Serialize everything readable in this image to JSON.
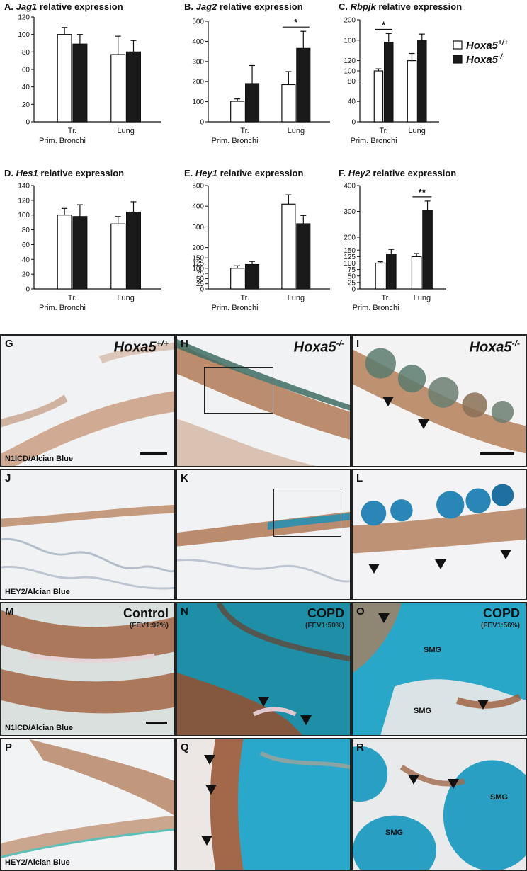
{
  "legend": {
    "wt_label": "Hoxa5",
    "wt_sup": "+/+",
    "ko_label": "Hoxa5",
    "ko_sup": "-/-"
  },
  "chart_data": [
    {
      "type": "bar",
      "letter": "A.",
      "gene": "Jag1",
      "suffix": " relative expression",
      "categories": [
        "Tr.\nPrim. Bronchi",
        "Lung"
      ],
      "series": [
        {
          "name": "Hoxa5+/+",
          "values": [
            100,
            77
          ],
          "errors": [
            8,
            21
          ]
        },
        {
          "name": "Hoxa5-/-",
          "values": [
            89,
            80
          ],
          "errors": [
            11,
            13
          ]
        }
      ],
      "ylim": [
        0,
        120
      ],
      "yticks": [
        0,
        20,
        40,
        60,
        80,
        100,
        120
      ],
      "significance": []
    },
    {
      "type": "bar",
      "letter": "B.",
      "gene": "Jag2",
      "suffix": " relative expression",
      "categories": [
        "Tr.\nPrim. Bronchi",
        "Lung"
      ],
      "series": [
        {
          "name": "Hoxa5+/+",
          "values": [
            102,
            185
          ],
          "errors": [
            12,
            65
          ]
        },
        {
          "name": "Hoxa5-/-",
          "values": [
            190,
            365
          ],
          "errors": [
            90,
            85
          ]
        }
      ],
      "ylim": [
        0,
        500
      ],
      "yticks": [
        0,
        100,
        200,
        300,
        400,
        500
      ],
      "significance": [
        {
          "group": 1,
          "label": "*"
        }
      ]
    },
    {
      "type": "bar",
      "letter": "C.",
      "gene": "Rbpjk",
      "suffix": " relative expression",
      "categories": [
        "Tr.\nPrim. Bronchi",
        "Lung"
      ],
      "series": [
        {
          "name": "Hoxa5+/+",
          "values": [
            100,
            120
          ],
          "errors": [
            4,
            14
          ]
        },
        {
          "name": "Hoxa5-/-",
          "values": [
            156,
            160
          ],
          "errors": [
            17,
            12
          ]
        }
      ],
      "ylim": [
        0,
        200
      ],
      "yticks": [
        0,
        40,
        80,
        100,
        120,
        160,
        200
      ],
      "significance": [
        {
          "group": 0,
          "label": "*"
        }
      ]
    },
    {
      "type": "bar",
      "letter": "D.",
      "gene": "Hes1",
      "suffix": " relative expression",
      "categories": [
        "Tr.\nPrim. Bronchi",
        "Lung"
      ],
      "series": [
        {
          "name": "Hoxa5+/+",
          "values": [
            100,
            88
          ],
          "errors": [
            9,
            10
          ]
        },
        {
          "name": "Hoxa5-/-",
          "values": [
            98,
            104
          ],
          "errors": [
            16,
            14
          ]
        }
      ],
      "ylim": [
        0,
        140
      ],
      "yticks": [
        0,
        20,
        40,
        60,
        80,
        100,
        120,
        140
      ],
      "significance": []
    },
    {
      "type": "bar",
      "letter": "E.",
      "gene": "Hey1",
      "suffix": " relative expression",
      "categories": [
        "Tr.\nPrim. Bronchi",
        "Lung"
      ],
      "series": [
        {
          "name": "Hoxa5+/+",
          "values": [
            100,
            410
          ],
          "errors": [
            12,
            45
          ]
        },
        {
          "name": "Hoxa5-/-",
          "values": [
            118,
            315
          ],
          "errors": [
            15,
            40
          ]
        }
      ],
      "ylim": [
        0,
        500
      ],
      "yticks": [
        0,
        25,
        50,
        75,
        100,
        125,
        150,
        200,
        300,
        400,
        500
      ],
      "significance": []
    },
    {
      "type": "bar",
      "letter": "F.",
      "gene": "Hey2",
      "suffix": " relative expression",
      "categories": [
        "Tr.\nPrim. Bronchi",
        "Lung"
      ],
      "series": [
        {
          "name": "Hoxa5+/+",
          "values": [
            100,
            125
          ],
          "errors": [
            5,
            12
          ]
        },
        {
          "name": "Hoxa5-/-",
          "values": [
            135,
            305
          ],
          "errors": [
            18,
            35
          ]
        }
      ],
      "ylim": [
        0,
        400
      ],
      "yticks": [
        0,
        25,
        50,
        75,
        100,
        125,
        150,
        200,
        300,
        400
      ],
      "significance": [
        {
          "group": 1,
          "label": "**"
        }
      ]
    }
  ],
  "panels": {
    "G": {
      "letter": "G",
      "title": "Hoxa5",
      "sup": "+/+",
      "stain": "N1ICD/Alcian Blue"
    },
    "H": {
      "letter": "H",
      "title": "Hoxa5",
      "sup": "-/-"
    },
    "I": {
      "letter": "I",
      "title": "Hoxa5",
      "sup": "-/-"
    },
    "J": {
      "letter": "J",
      "stain": "HEY2/Alcian Blue"
    },
    "K": {
      "letter": "K"
    },
    "L": {
      "letter": "L"
    },
    "M": {
      "letter": "M",
      "title": "Control",
      "fev": "(FEV1:92%)",
      "stain": "N1ICD/Alcian Blue"
    },
    "N": {
      "letter": "N",
      "title": "COPD",
      "fev": "(FEV1:50%)"
    },
    "O": {
      "letter": "O",
      "title": "COPD",
      "fev": "(FEV1:56%)",
      "smg1": "SMG",
      "smg2": "SMG"
    },
    "P": {
      "letter": "P",
      "stain": "HEY2/Alcian Blue"
    },
    "Q": {
      "letter": "Q"
    },
    "R": {
      "letter": "R",
      "smg1": "SMG",
      "smg2": "SMG"
    }
  },
  "colors": {
    "wt_fill": "#ffffff",
    "ko_fill": "#1a1a1a",
    "tissue_brown": "#a9714a",
    "alcian_blue": "#2aa6c4",
    "background_light": "#eef0f2"
  }
}
